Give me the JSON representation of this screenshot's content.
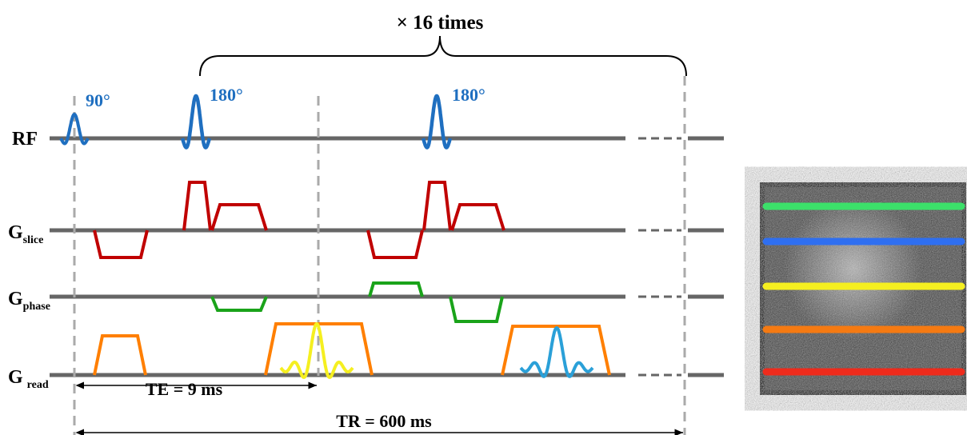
{
  "title": "× 16 times",
  "pulses": [
    {
      "label": "90°"
    },
    {
      "label": "180°"
    },
    {
      "label": "180°"
    }
  ],
  "rows": [
    {
      "label": "RF"
    },
    {
      "label": "G",
      "subscript": "slice"
    },
    {
      "label": "G",
      "subscript": "phase"
    },
    {
      "label": "G",
      "subscript": "read"
    }
  ],
  "te": "TE = 9 ms",
  "tr": "TR = 600 ms"
}
